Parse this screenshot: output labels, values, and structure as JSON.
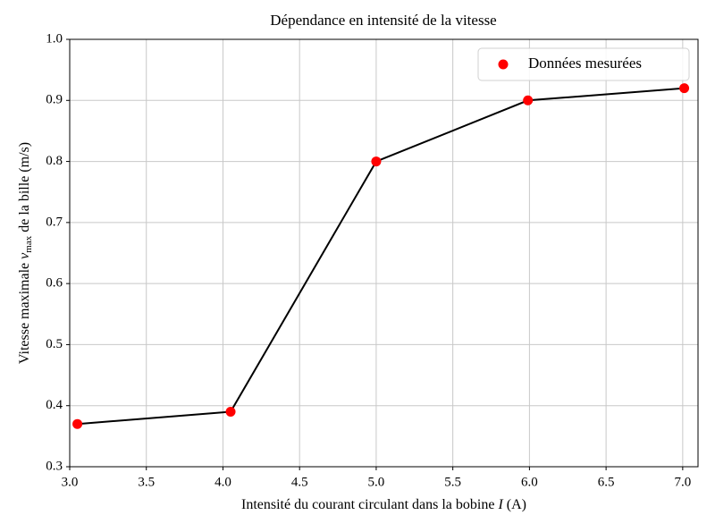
{
  "chart_data": {
    "type": "line",
    "title": "Dépendance en intensité de la vitesse",
    "xlabel": [
      "Intensité du courant circulant dans la bobine ",
      "I",
      " (A)"
    ],
    "ylabel": [
      "Vitesse maximale ",
      "v",
      "max",
      " de la bille (m/s)"
    ],
    "x": [
      3.05,
      4.05,
      5.0,
      5.99,
      7.01
    ],
    "series": [
      {
        "name": "Données mesurées",
        "color": "#ff0000",
        "line_color": "#000000",
        "values": [
          0.37,
          0.39,
          0.8,
          0.9,
          0.92
        ]
      }
    ],
    "xlim": [
      3.0,
      7.1
    ],
    "xticks": [
      {
        "value": 3,
        "label": "3.0"
      },
      3.5,
      {
        "value": 4,
        "label": "4.0"
      },
      4.5,
      {
        "value": 5,
        "label": "5.0"
      },
      5.5,
      {
        "value": 6,
        "label": "6.0"
      },
      6.5,
      {
        "value": 7,
        "label": "7.0"
      }
    ],
    "ylim": [
      0.3,
      1.0
    ],
    "yticks": [
      0.3,
      0.4,
      0.5,
      0.6,
      0.7,
      0.8,
      0.9,
      {
        "value": 1,
        "label": "1.0"
      }
    ],
    "grid": true,
    "legend": "upper right"
  }
}
